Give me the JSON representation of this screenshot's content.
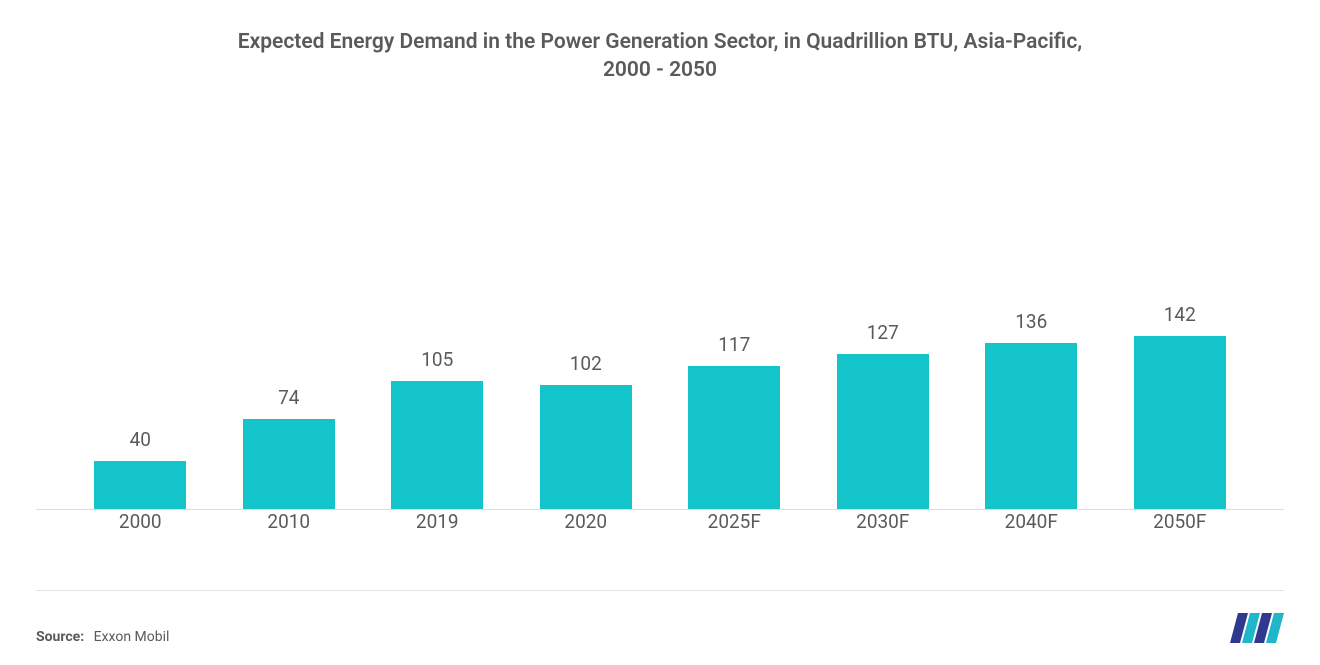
{
  "title_line1": "Expected Energy Demand in the Power Generation Sector, in Quadrillion BTU, Asia-Pacific,",
  "title_line2": "2000 - 2050",
  "source_label": "Source:",
  "source_value": "Exxon Mobil",
  "chart": {
    "type": "bar",
    "categories": [
      "2000",
      "2010",
      "2019",
      "2020",
      "2025F",
      "2030F",
      "2040F",
      "2050F"
    ],
    "values": [
      40,
      74,
      105,
      102,
      117,
      127,
      136,
      142
    ],
    "ymax": 330,
    "bar_color": "#13c4ca",
    "bar_width_pct": 62,
    "value_fontsize": 19,
    "xlabel_fontsize": 19,
    "title_fontsize": 21,
    "title_color": "#5a5a5a",
    "text_color": "#5a5a5a",
    "baseline_color": "#dcdcdc",
    "background_color": "#ffffff"
  },
  "logo": {
    "bar_colors": [
      "#2f3a8f",
      "#1fb6c9",
      "#2f3a8f",
      "#1fb6c9"
    ]
  }
}
